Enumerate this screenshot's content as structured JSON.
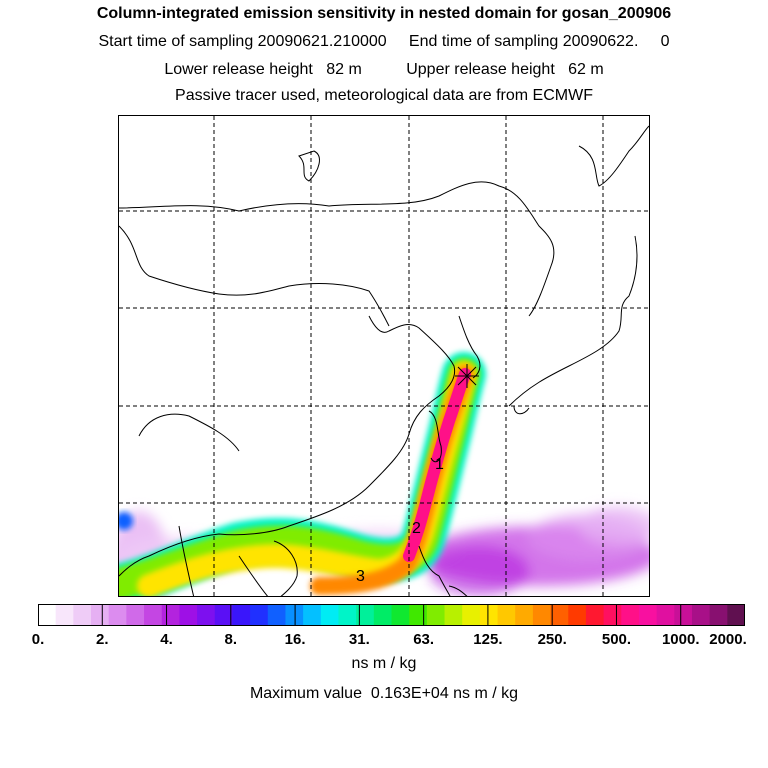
{
  "header": {
    "title": "Column-integrated emission sensitivity in nested domain for gosan_200906",
    "sampling_line": "Start time of sampling 20090621.210000     End time of sampling 20090622.     0",
    "release_line": "Lower release height   82 m          Upper release height   62 m",
    "tracer_line": "Passive tracer used, meteorological data are from ECMWF"
  },
  "map": {
    "receptor_marker": "gosan-receptor",
    "age_labels": [
      "1",
      "2",
      "3"
    ]
  },
  "colorbar": {
    "ticks": [
      "0.",
      "2.",
      "4.",
      "8.",
      "16.",
      "31.",
      "63.",
      "125.",
      "250.",
      "500.",
      "1000.",
      "2000."
    ],
    "colors": [
      "#ffffff",
      "#f8e6fb",
      "#efccf7",
      "#e6b0f3",
      "#dc8cef",
      "#d06ae9",
      "#c446e3",
      "#b323de",
      "#9e10e6",
      "#7d10ef",
      "#5a10f5",
      "#3a16fb",
      "#2030ff",
      "#1060ff",
      "#0890ff",
      "#04c0ff",
      "#00ecf4",
      "#00f4c8",
      "#00f09a",
      "#00ec66",
      "#10e830",
      "#40e800",
      "#80ec00",
      "#b8f000",
      "#e8f000",
      "#ffe400",
      "#ffc800",
      "#ffaa00",
      "#ff8800",
      "#ff6000",
      "#ff3a00",
      "#ff1830",
      "#ff1060",
      "#ff1088",
      "#f810a0",
      "#e010a0",
      "#c81098",
      "#a81088",
      "#881070",
      "#601050"
    ],
    "units": "ns m / kg"
  },
  "max_value_line": "Maximum value  0.163E+04 ns m / kg"
}
